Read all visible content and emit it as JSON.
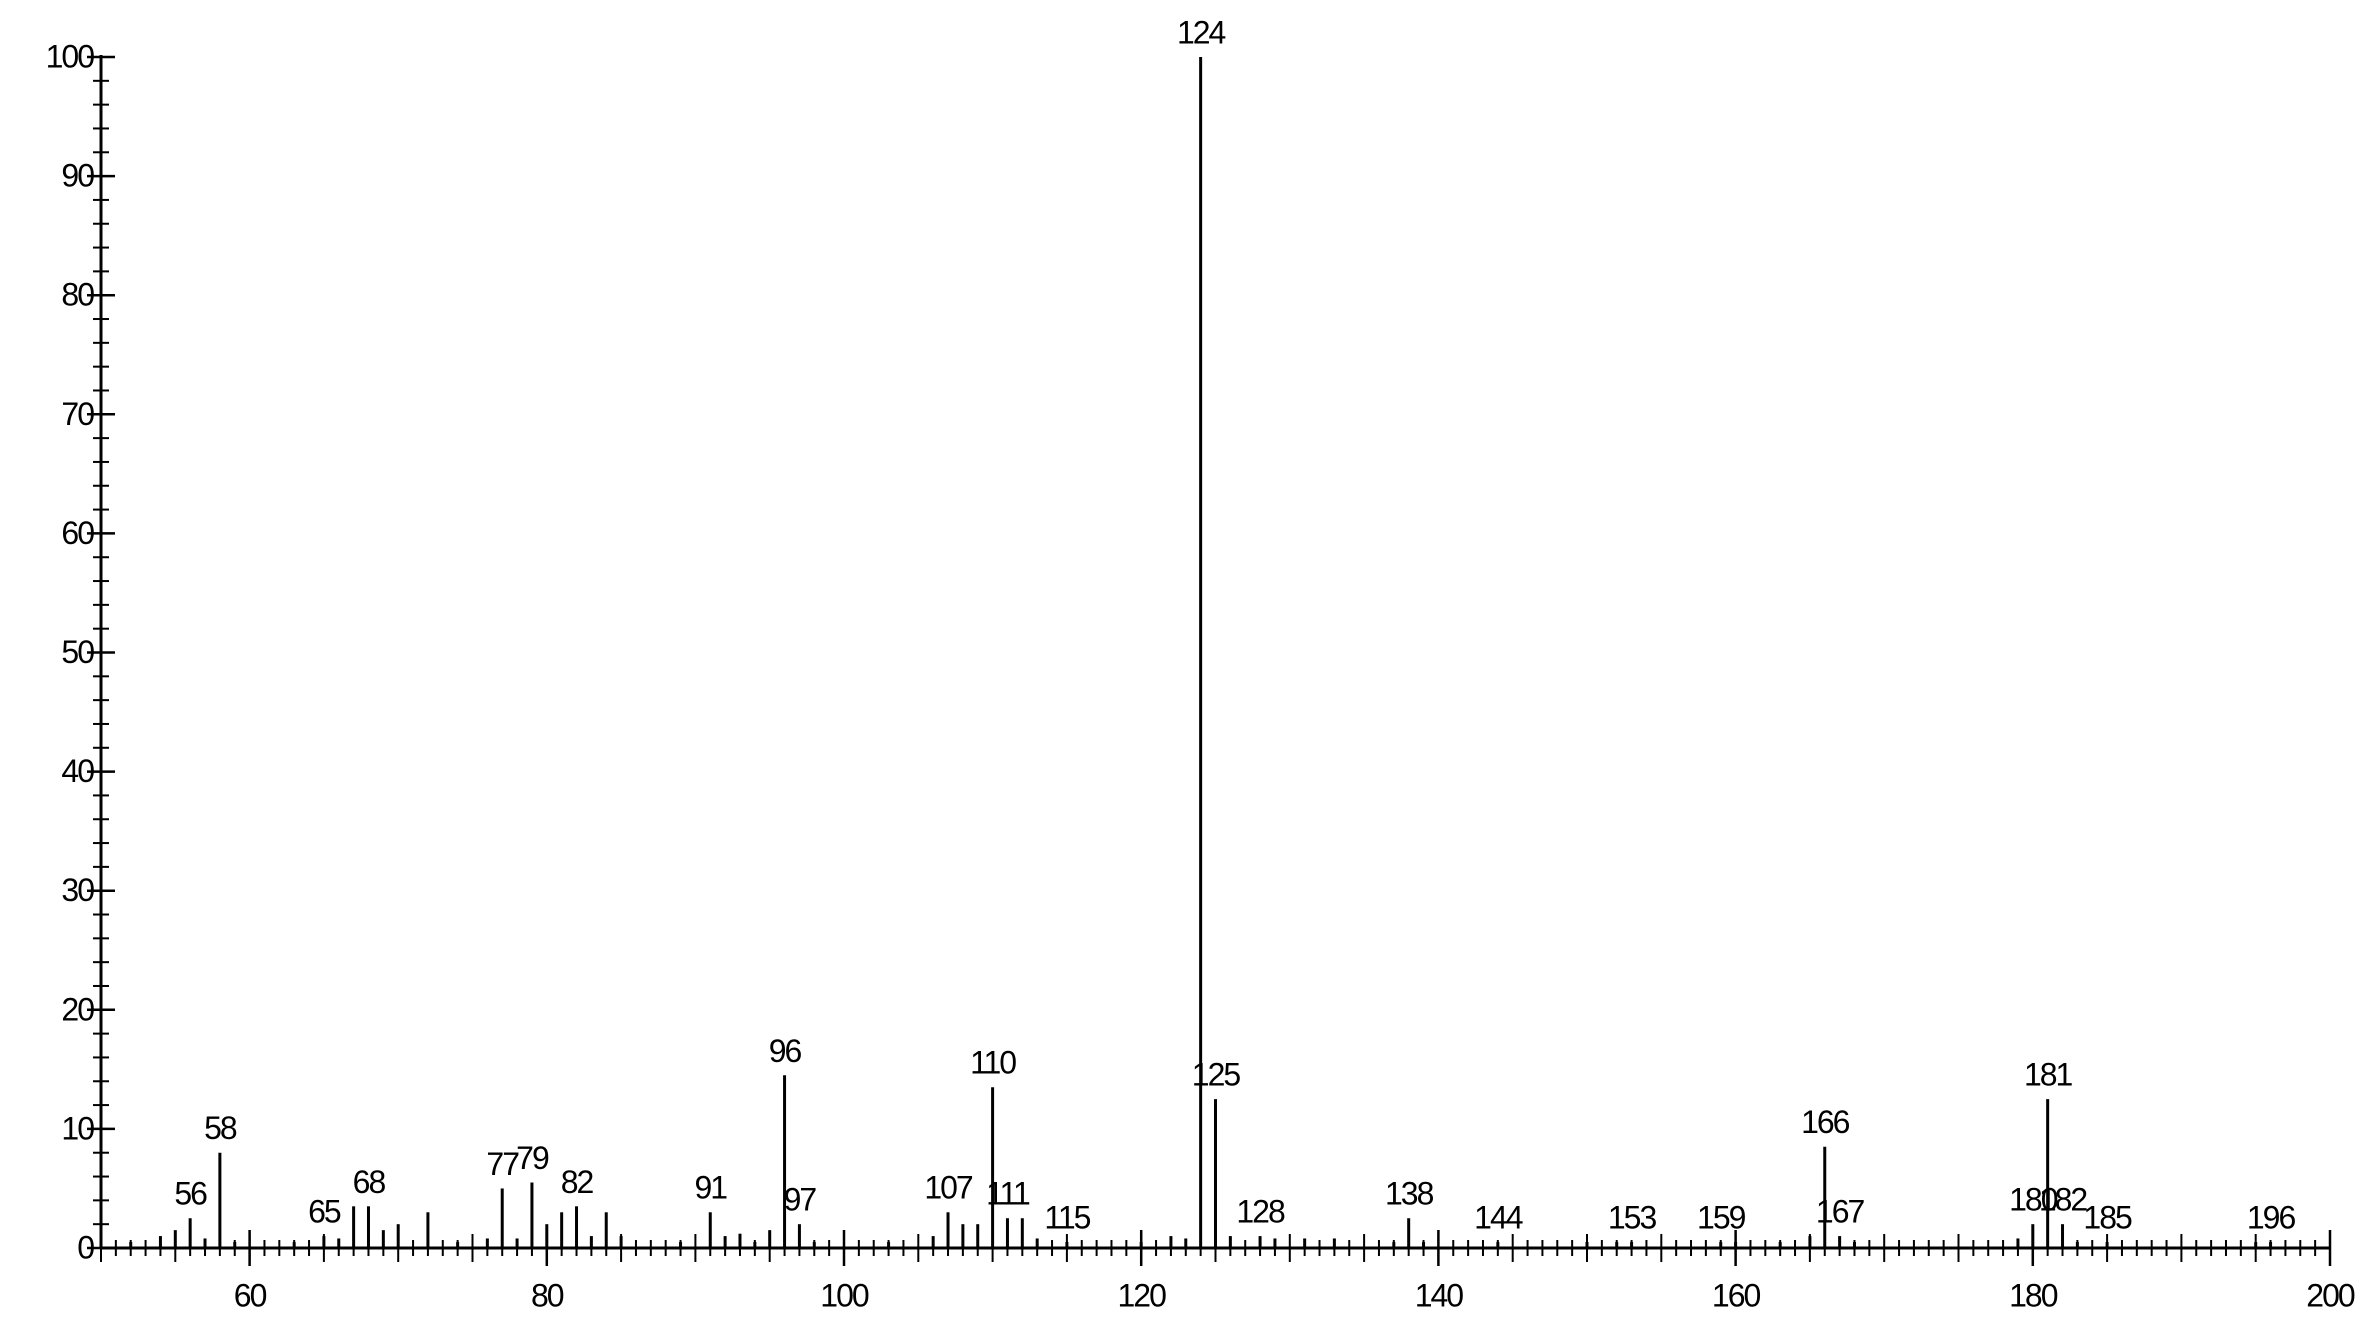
{
  "chart_data": {
    "type": "stick",
    "x": [
      56,
      58,
      65,
      68,
      77,
      79,
      82,
      91,
      96,
      97,
      107,
      110,
      111,
      115,
      124,
      125,
      128,
      138,
      144,
      153,
      159,
      166,
      167,
      180,
      181,
      182,
      185,
      196
    ],
    "values": [
      2.5,
      8,
      1,
      3.5,
      5,
      5.5,
      3.5,
      3,
      14.5,
      2,
      3,
      13.5,
      2.5,
      0.5,
      100,
      12.5,
      1,
      2.5,
      0.5,
      0.5,
      0.5,
      8.5,
      1,
      2,
      12.5,
      2,
      0.5,
      0.5
    ],
    "minor_x": [
      52,
      54,
      55,
      57,
      59,
      63,
      66,
      67,
      69,
      70,
      72,
      74,
      76,
      78,
      80,
      81,
      83,
      84,
      85,
      89,
      92,
      93,
      94,
      95,
      98,
      103,
      106,
      108,
      109,
      112,
      113,
      120,
      122,
      123,
      126,
      129,
      131,
      133,
      137,
      139,
      150,
      152,
      160,
      163,
      165,
      168,
      179,
      183,
      195
    ],
    "minor_values": [
      0.5,
      1,
      1.5,
      0.8,
      0.5,
      0.5,
      0.8,
      3.5,
      1.5,
      2,
      3,
      0.5,
      0.8,
      0.8,
      2,
      3,
      1,
      3,
      1,
      0.5,
      1,
      1.2,
      0.5,
      1.5,
      0.5,
      0.5,
      1,
      2,
      2,
      2.5,
      0.8,
      0.5,
      1,
      0.8,
      1,
      0.8,
      0.8,
      0.8,
      0.5,
      0.5,
      0.5,
      0.5,
      0.5,
      0.5,
      1,
      0.5,
      0.8,
      0.5,
      0.5
    ],
    "color": "#000000",
    "xlim": [
      50,
      200
    ],
    "xticks": [
      60,
      80,
      100,
      120,
      140,
      160,
      180,
      200
    ],
    "ylim": [
      0,
      100
    ],
    "yticks": [
      0,
      10,
      20,
      30,
      40,
      50,
      60,
      70,
      80,
      90,
      100
    ]
  }
}
